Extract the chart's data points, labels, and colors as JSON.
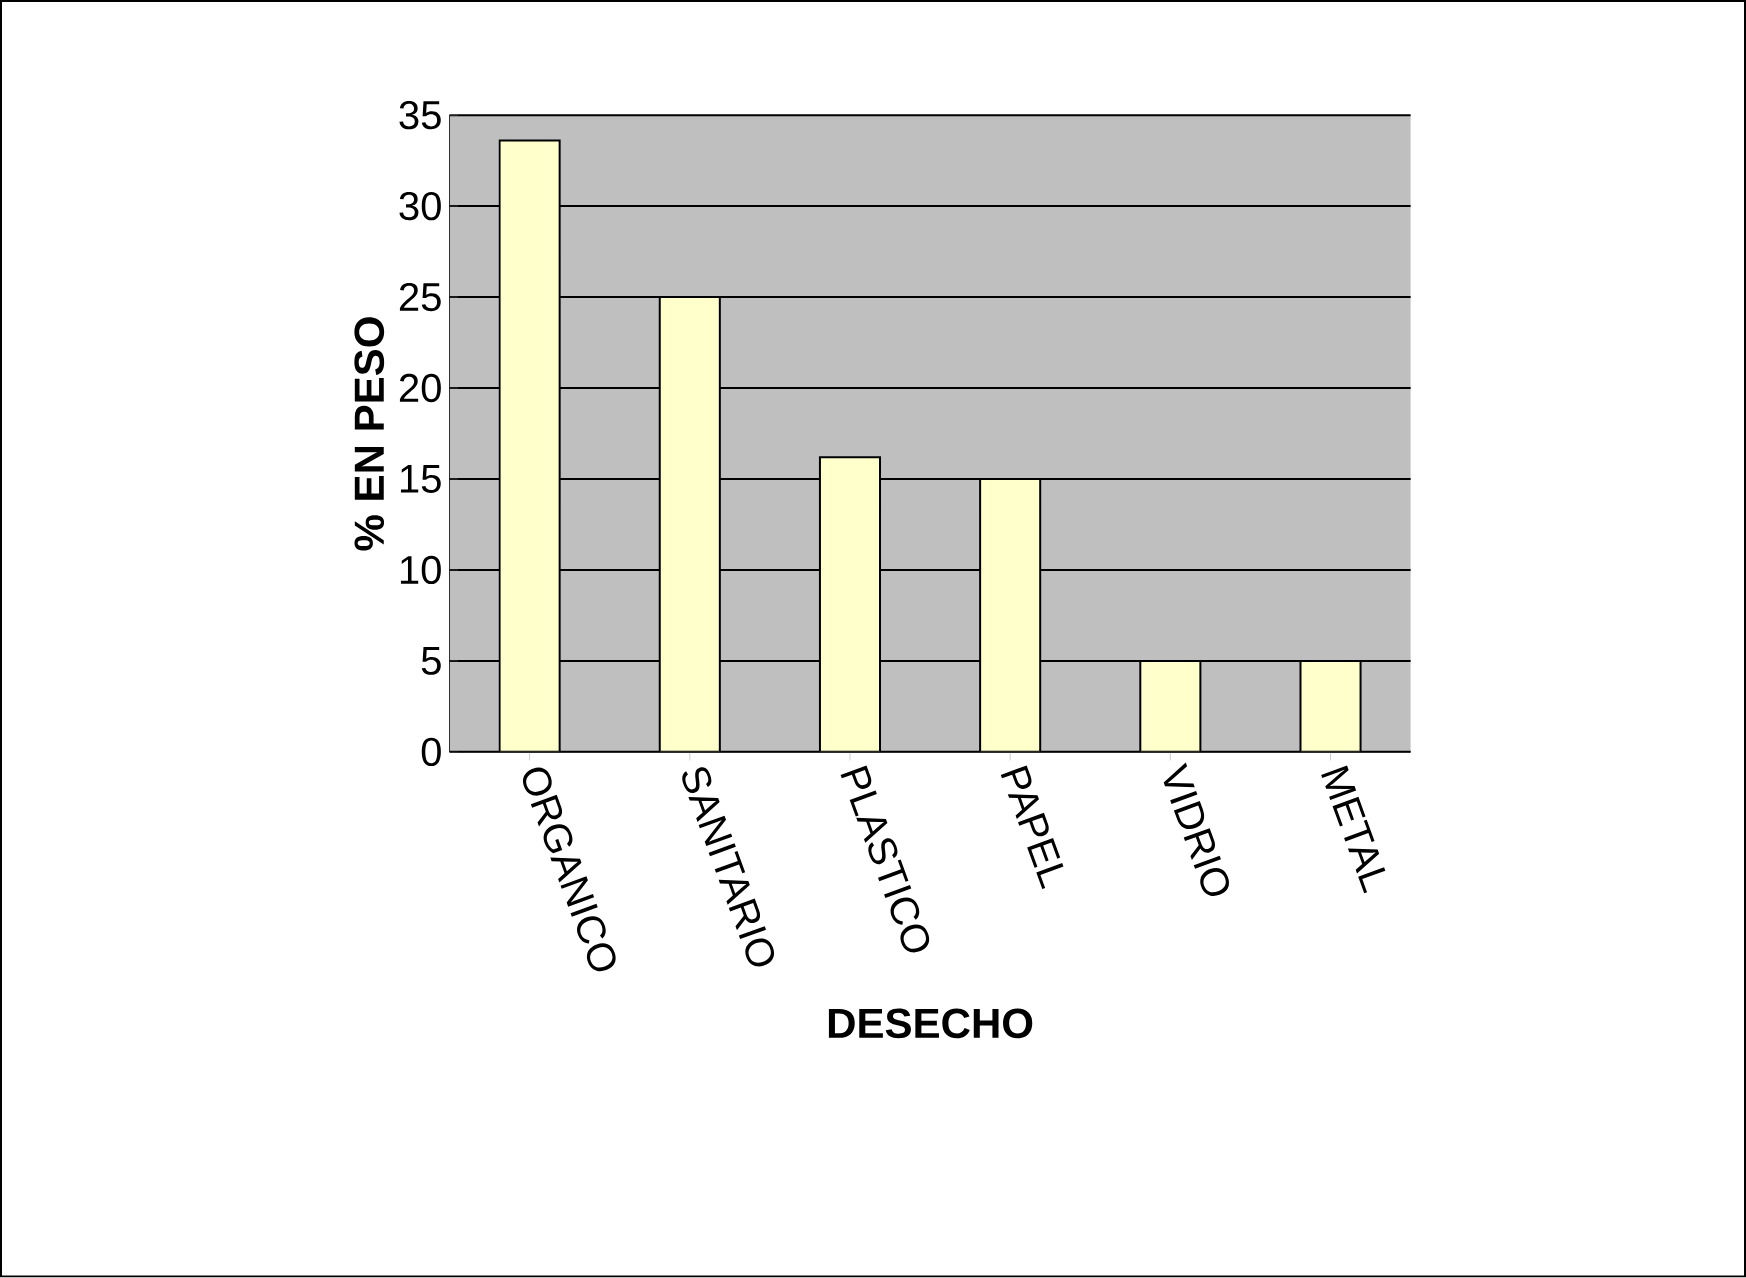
{
  "chart_data": {
    "type": "bar",
    "xlabel": "DESECHO",
    "ylabel": "% EN PESO",
    "categories": [
      "ORGANICO",
      "SANITARIO",
      "PLASTICO",
      "PAPEL",
      "VIDRIO",
      "METAL"
    ],
    "values": [
      33.6,
      25.0,
      16.2,
      15.0,
      5.0,
      5.0
    ],
    "color": "#ffffcc",
    "ylim": [
      0,
      35
    ],
    "yticks": [
      0,
      5,
      10,
      15,
      20,
      25,
      30,
      35
    ],
    "grid": "y"
  }
}
